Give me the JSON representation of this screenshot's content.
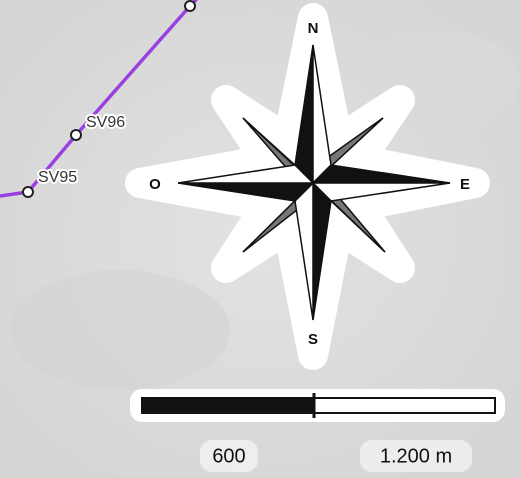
{
  "route": {
    "points": [
      {
        "label": "SV96"
      },
      {
        "label": "SV95"
      }
    ]
  },
  "compass": {
    "north": "N",
    "east": "E",
    "south": "S",
    "west": "O"
  },
  "scale_bar": {
    "labels": [
      "600",
      "1.200 m"
    ]
  }
}
